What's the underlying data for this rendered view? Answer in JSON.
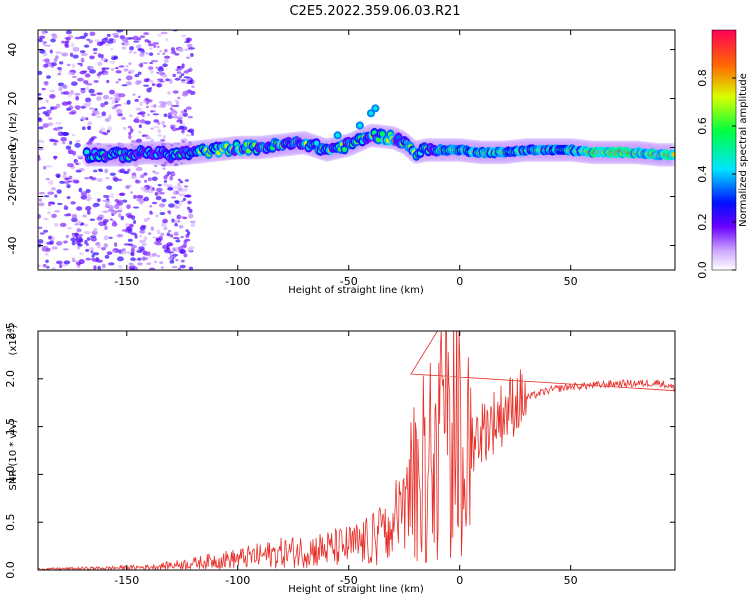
{
  "title": "C2E5.2022.359.06.03.R21",
  "chart_data": [
    {
      "type": "heatmap",
      "xlabel": "Height of straight line (km)",
      "ylabel": "Frequency (Hz)",
      "xlim": [
        -190,
        97
      ],
      "ylim": [
        -50,
        48
      ],
      "xticks": [
        -150,
        -100,
        -50,
        0,
        50
      ],
      "xtick_labels": [
        "-150",
        "-100",
        "-50",
        "0",
        "50"
      ],
      "yticks": [
        -40,
        -20,
        0,
        20,
        40
      ],
      "ytick_labels": [
        "-40",
        "-20",
        "0",
        "20",
        "40"
      ],
      "grid": false,
      "trace": {
        "x": [
          -165,
          -150,
          -140,
          -130,
          -120,
          -110,
          -100,
          -90,
          -80,
          -70,
          -60,
          -50,
          -40,
          -30,
          -25,
          -20,
          -15,
          -10,
          0,
          10,
          20,
          30,
          40,
          50,
          60,
          70,
          80,
          90,
          97
        ],
        "frequency": [
          -3,
          -3,
          -2,
          -3,
          -2,
          -1,
          0,
          0,
          1,
          2,
          -1,
          1,
          5,
          4,
          2,
          -2,
          -1,
          -1,
          -1,
          -2,
          -2,
          -1,
          -1,
          -1,
          -2,
          -2,
          -2,
          -3,
          -3
        ]
      }
    },
    {
      "type": "colorbar",
      "label": "Normalized spectral amplitude",
      "range": [
        0.0,
        1.0
      ],
      "ticks": [
        0.0,
        0.2,
        0.4,
        0.6,
        0.8
      ],
      "tick_labels": [
        "0.0",
        "0.2",
        "0.4",
        "0.6",
        "0.8"
      ],
      "colormap": [
        "#ffffff",
        "#6a00ff",
        "#0010ff",
        "#00e5ff",
        "#00ff40",
        "#d8ff00",
        "#ff6a00",
        "#ff0055"
      ]
    },
    {
      "type": "line",
      "xlabel": "Height of straight line (km)",
      "ylabel": "SNR (10 * v/v)",
      "scale_label": "(x10",
      "scale_exponent": "4",
      "scale_suffix": ")",
      "xlim": [
        -190,
        97
      ],
      "ylim": [
        0,
        2.5
      ],
      "xticks": [
        -150,
        -100,
        -50,
        0,
        50
      ],
      "xtick_labels": [
        "-150",
        "-100",
        "-50",
        "0",
        "50"
      ],
      "yticks": [
        0.0,
        0.5,
        1.0,
        1.5,
        2.0,
        2.5
      ],
      "ytick_labels": [
        "0.0",
        "0.5",
        "1.0",
        "1.5",
        "2.0",
        "2.5"
      ],
      "color": "#e8302a",
      "grid": false,
      "series": [
        {
          "name": "SNR",
          "x": [
            -190,
            -160,
            -140,
            -130,
            -120,
            -110,
            -100,
            -90,
            -80,
            -70,
            -60,
            -50,
            -40,
            -35,
            -30,
            -25,
            -20,
            -15,
            -10,
            -5,
            0,
            5,
            10,
            15,
            20,
            25,
            30,
            40,
            50,
            60,
            70,
            80,
            90,
            97
          ],
          "values": [
            0.01,
            0.02,
            0.03,
            0.05,
            0.07,
            0.1,
            0.12,
            0.15,
            0.18,
            0.2,
            0.22,
            0.25,
            0.3,
            0.35,
            0.4,
            0.55,
            0.75,
            0.9,
            1.0,
            1.1,
            1.2,
            1.35,
            1.45,
            1.55,
            1.65,
            1.75,
            1.8,
            1.88,
            1.92,
            1.93,
            1.95,
            1.95,
            1.96,
            1.9
          ]
        }
      ],
      "annotations": [
        {
          "x": -22,
          "value": 2.05
        },
        {
          "x": -10,
          "value": 2.5
        }
      ]
    }
  ]
}
